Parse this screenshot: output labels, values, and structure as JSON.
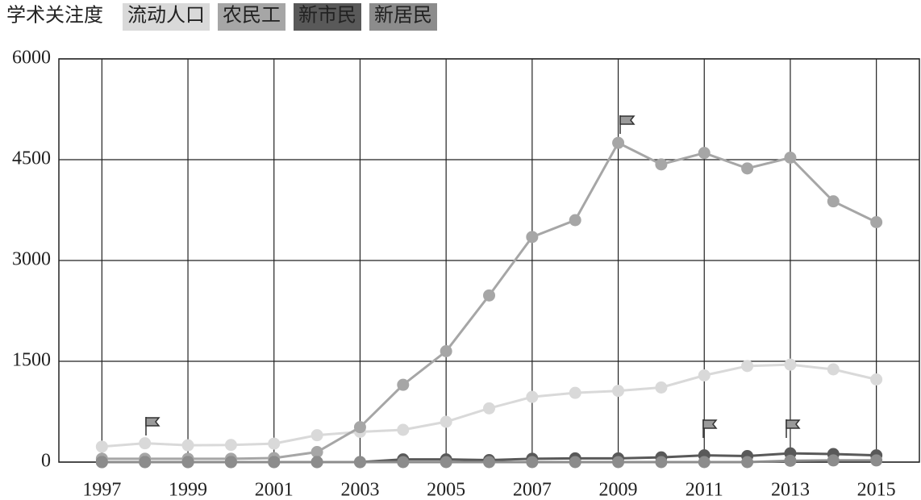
{
  "chart_data": {
    "type": "line",
    "title": "学术关注度",
    "x": [
      1997,
      1998,
      1999,
      2000,
      2001,
      2002,
      2003,
      2004,
      2005,
      2006,
      2007,
      2008,
      2009,
      2010,
      2011,
      2012,
      2013,
      2014,
      2015
    ],
    "series": [
      {
        "name": "流动人口",
        "color": "#d9d9d9",
        "values": [
          230,
          280,
          250,
          255,
          275,
          400,
          450,
          480,
          600,
          800,
          970,
          1030,
          1060,
          1110,
          1290,
          1430,
          1450,
          1380,
          1230
        ]
      },
      {
        "name": "农民工",
        "color": "#a6a6a6",
        "values": [
          50,
          50,
          50,
          50,
          60,
          150,
          520,
          1150,
          1650,
          2480,
          3350,
          3600,
          4750,
          4430,
          4600,
          4370,
          4530,
          3880,
          3570
        ]
      },
      {
        "name": "新市民",
        "color": "#595959",
        "values": [
          0,
          0,
          0,
          0,
          0,
          0,
          0,
          40,
          40,
          30,
          50,
          55,
          55,
          70,
          100,
          90,
          130,
          120,
          100
        ]
      },
      {
        "name": "新居民",
        "color": "#8c8c8c",
        "values": [
          0,
          0,
          0,
          0,
          0,
          0,
          0,
          0,
          0,
          0,
          0,
          0,
          0,
          0,
          0,
          0,
          20,
          25,
          25
        ]
      }
    ],
    "xlim": [
      1996,
      2016
    ],
    "xticks": [
      1997,
      1999,
      2001,
      2003,
      2005,
      2007,
      2009,
      2011,
      2013,
      2015
    ],
    "ylim": [
      0,
      6000
    ],
    "yticks": [
      0,
      1500,
      3000,
      4500,
      6000
    ],
    "grid": true
  }
}
